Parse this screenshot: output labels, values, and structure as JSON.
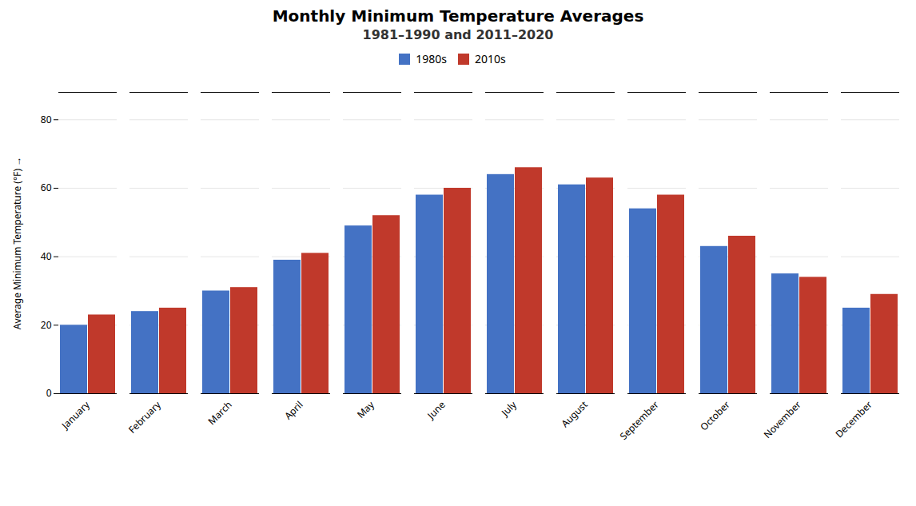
{
  "chart_data": {
    "type": "bar",
    "title": "Monthly Minimum Temperature Averages",
    "subtitle": "1981–1990 and 2011–2020",
    "ylabel": "Average Minimum Temperature (°F)",
    "categories": [
      "January",
      "February",
      "March",
      "April",
      "May",
      "June",
      "July",
      "August",
      "September",
      "October",
      "November",
      "December"
    ],
    "series": [
      {
        "name": "1980s",
        "color": "#4472C4",
        "values": [
          20,
          24,
          30,
          39,
          49,
          58,
          64,
          61,
          54,
          43,
          35,
          25
        ]
      },
      {
        "name": "2010s",
        "color": "#C0392B",
        "values": [
          23,
          25,
          31,
          41,
          52,
          60,
          66,
          63,
          58,
          46,
          34,
          29
        ]
      }
    ],
    "ylim": [
      0,
      88
    ],
    "yticks": [
      0,
      20,
      40,
      60,
      80
    ],
    "grid": true,
    "legend": "top"
  }
}
